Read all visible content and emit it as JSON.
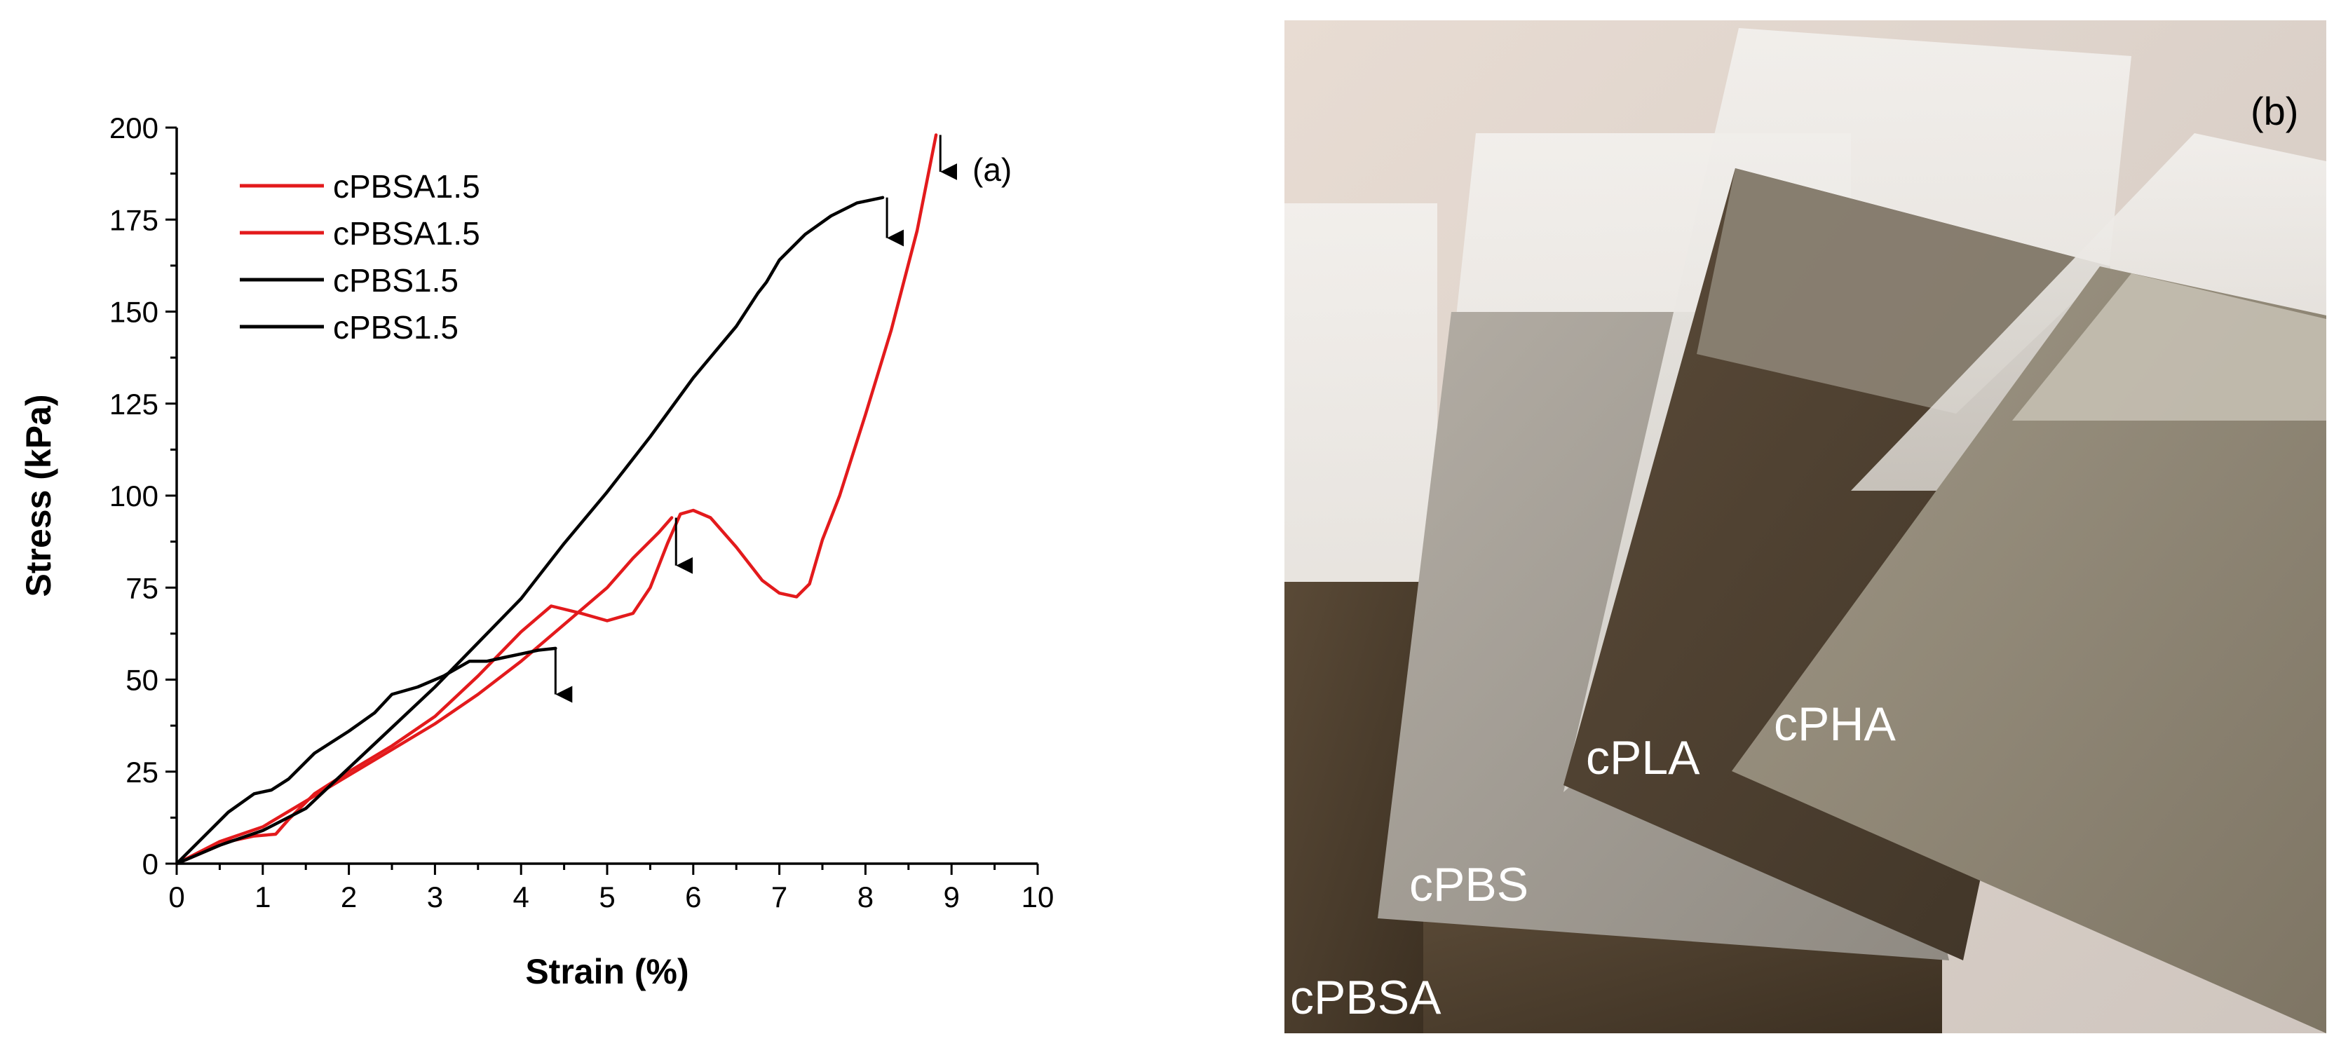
{
  "chart_data": {
    "type": "line",
    "panel_label": "(a)",
    "xlabel": "Strain (%)",
    "ylabel": "Stress (kPa)",
    "xlim": [
      0,
      10
    ],
    "ylim": [
      0,
      200
    ],
    "x_ticks": [
      0,
      1,
      2,
      3,
      4,
      5,
      6,
      7,
      8,
      9,
      10
    ],
    "y_ticks": [
      0,
      25,
      50,
      75,
      100,
      125,
      150,
      175,
      200
    ],
    "legend_position": "top-left",
    "series": [
      {
        "name": "cPBSA1.5",
        "color": "#e31a1c",
        "points": [
          [
            0,
            0
          ],
          [
            0.3,
            3
          ],
          [
            0.6,
            6
          ],
          [
            0.9,
            7.5
          ],
          [
            1.15,
            8
          ],
          [
            1.3,
            12
          ],
          [
            1.6,
            19
          ],
          [
            2.0,
            25
          ],
          [
            2.5,
            32
          ],
          [
            3.0,
            40
          ],
          [
            3.5,
            51
          ],
          [
            4.0,
            63
          ],
          [
            4.35,
            70
          ],
          [
            4.7,
            68
          ],
          [
            5.0,
            66
          ],
          [
            5.3,
            68
          ],
          [
            5.5,
            75
          ],
          [
            5.7,
            87
          ],
          [
            5.85,
            95
          ],
          [
            6.0,
            96
          ],
          [
            6.2,
            94
          ],
          [
            6.5,
            86
          ],
          [
            6.8,
            77
          ],
          [
            7.0,
            73.5
          ],
          [
            7.2,
            72.5
          ],
          [
            7.35,
            76
          ],
          [
            7.5,
            88
          ],
          [
            7.7,
            100
          ],
          [
            8.0,
            122
          ],
          [
            8.3,
            145
          ],
          [
            8.6,
            172
          ],
          [
            8.82,
            198
          ]
        ],
        "break_arrow": {
          "x": 8.87,
          "y_from": 198,
          "y_to": 188
        }
      },
      {
        "name": "cPBSA1.5",
        "color": "#e31a1c",
        "points": [
          [
            0,
            0
          ],
          [
            0.5,
            6
          ],
          [
            1.0,
            10
          ],
          [
            1.5,
            17
          ],
          [
            2.0,
            24
          ],
          [
            2.5,
            31
          ],
          [
            3.0,
            38
          ],
          [
            3.5,
            46
          ],
          [
            4.0,
            55
          ],
          [
            4.5,
            65
          ],
          [
            5.0,
            75
          ],
          [
            5.3,
            83
          ],
          [
            5.6,
            90
          ],
          [
            5.75,
            94
          ]
        ],
        "break_arrow": {
          "x": 5.8,
          "y_from": 94,
          "y_to": 81
        }
      },
      {
        "name": "cPBS1.5",
        "color": "#000000",
        "points": [
          [
            0,
            0
          ],
          [
            0.3,
            7
          ],
          [
            0.6,
            14
          ],
          [
            0.9,
            19
          ],
          [
            1.1,
            20
          ],
          [
            1.3,
            23
          ],
          [
            1.6,
            30
          ],
          [
            2.0,
            36
          ],
          [
            2.3,
            41
          ],
          [
            2.5,
            46
          ],
          [
            2.8,
            48
          ],
          [
            3.1,
            51
          ],
          [
            3.4,
            55
          ],
          [
            3.6,
            55
          ],
          [
            3.8,
            56
          ],
          [
            4.0,
            57
          ],
          [
            4.2,
            58
          ],
          [
            4.4,
            58.5
          ]
        ],
        "break_arrow": {
          "x": 4.4,
          "y_from": 58.5,
          "y_to": 46
        }
      },
      {
        "name": "cPBS1.5",
        "color": "#000000",
        "points": [
          [
            0,
            0
          ],
          [
            0.5,
            5
          ],
          [
            1.0,
            9
          ],
          [
            1.5,
            15
          ],
          [
            2.0,
            26
          ],
          [
            2.5,
            37
          ],
          [
            3.0,
            48
          ],
          [
            3.5,
            60
          ],
          [
            4.0,
            72
          ],
          [
            4.5,
            87
          ],
          [
            5.0,
            101
          ],
          [
            5.5,
            116
          ],
          [
            6.0,
            132
          ],
          [
            6.5,
            146
          ],
          [
            6.75,
            155
          ],
          [
            6.85,
            158
          ],
          [
            7.0,
            164
          ],
          [
            7.3,
            171
          ],
          [
            7.6,
            176
          ],
          [
            7.9,
            179.5
          ],
          [
            8.2,
            181
          ]
        ],
        "break_arrow": {
          "x": 8.25,
          "y_from": 181,
          "y_to": 170
        }
      }
    ]
  },
  "photo": {
    "panel_label": "(b)",
    "sample_labels": [
      "cPBSA",
      "cPBS",
      "cPLA",
      "cPHA"
    ]
  }
}
